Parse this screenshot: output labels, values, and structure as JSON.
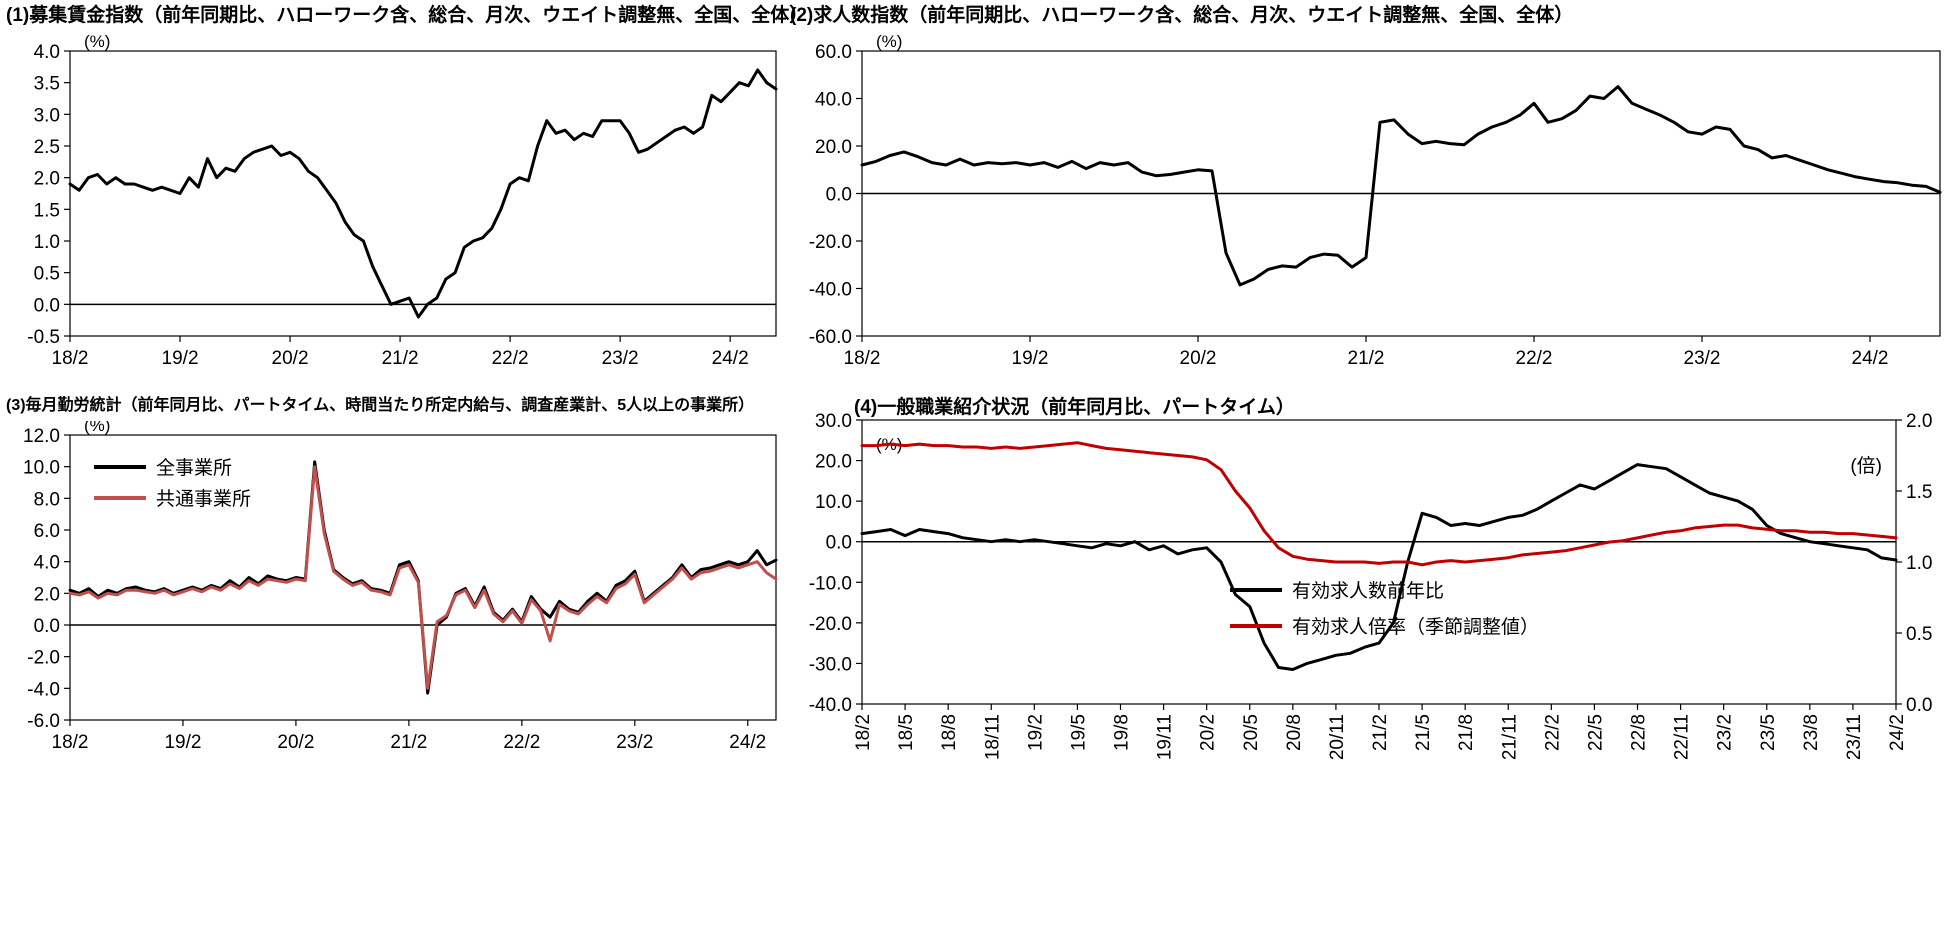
{
  "page": {
    "background": "#ffffff"
  },
  "chart_data": [
    {
      "id": "c1",
      "type": "line",
      "title": "(1)募集賃金指数（前年同期比、ハローワーク含、総合、月次、ウエイト調整無、全国、全体）",
      "unit_left": "(%)",
      "ylim": [
        -0.5,
        4.0
      ],
      "ytick": 0.5,
      "grid": false,
      "legend_visible": false,
      "x_labels": [
        "18/2",
        "19/2",
        "20/2",
        "21/2",
        "22/2",
        "23/2",
        "24/2"
      ],
      "x_step": 12,
      "series": [
        {
          "name": "",
          "color": "#000000",
          "axis": "left",
          "values": [
            1.9,
            1.8,
            2.0,
            2.05,
            1.9,
            2.0,
            1.9,
            1.9,
            1.85,
            1.8,
            1.85,
            1.8,
            1.75,
            2.0,
            1.85,
            2.3,
            2.0,
            2.15,
            2.1,
            2.3,
            2.4,
            2.45,
            2.5,
            2.35,
            2.4,
            2.3,
            2.1,
            2.0,
            1.8,
            1.6,
            1.3,
            1.1,
            1.0,
            0.6,
            0.3,
            0.0,
            0.05,
            0.1,
            -0.2,
            0.0,
            0.1,
            0.4,
            0.5,
            0.9,
            1.0,
            1.05,
            1.2,
            1.5,
            1.9,
            2.0,
            1.95,
            2.5,
            2.9,
            2.7,
            2.75,
            2.6,
            2.7,
            2.65,
            2.9,
            2.9,
            2.9,
            2.7,
            2.4,
            2.45,
            2.55,
            2.65,
            2.75,
            2.8,
            2.7,
            2.8,
            3.3,
            3.2,
            3.35,
            3.5,
            3.45,
            3.7,
            3.5,
            3.4
          ]
        }
      ]
    },
    {
      "id": "c2",
      "type": "line",
      "title": "(2)求人数指数（前年同期比、ハローワーク含、総合、月次、ウエイト調整無、全国、全体）",
      "unit_left": "(%)",
      "ylim": [
        -60.0,
        60.0
      ],
      "ytick": 20,
      "grid": false,
      "legend_visible": false,
      "x_labels": [
        "18/2",
        "19/2",
        "20/2",
        "21/2",
        "22/2",
        "23/2",
        "24/2"
      ],
      "x_step": 12,
      "series": [
        {
          "name": "",
          "color": "#000000",
          "axis": "left",
          "values": [
            12,
            13.5,
            16,
            17.5,
            15.5,
            13,
            12,
            14.5,
            12,
            13,
            12.5,
            13,
            12,
            13,
            11,
            13.5,
            10.5,
            13,
            12,
            13,
            9,
            7.5,
            8,
            9,
            10,
            9.5,
            -25,
            -38.5,
            -36,
            -32,
            -30.5,
            -31,
            -27,
            -25.5,
            -26,
            -31,
            -27,
            30,
            31,
            25,
            21,
            22,
            21,
            20.5,
            25,
            28,
            30,
            33,
            38,
            30,
            31.5,
            35,
            41,
            40,
            45,
            38,
            35.5,
            33,
            30,
            26,
            25,
            28,
            27,
            20,
            18.5,
            15,
            16,
            14,
            12,
            10,
            8.5,
            7,
            6,
            5,
            4.5,
            3.5,
            3,
            0.5
          ]
        }
      ]
    },
    {
      "id": "c3",
      "type": "line",
      "title": "(3)毎月勤労統計（前年同月比、パートタイム、時間当たり所定内給与、調査産業計、5人以上の事業所）",
      "unit_left": "(%)",
      "ylim": [
        -6.0,
        12.0
      ],
      "ytick": 2,
      "grid": false,
      "legend_visible": true,
      "x_labels": [
        "18/2",
        "19/2",
        "20/2",
        "21/2",
        "22/2",
        "23/2",
        "24/2"
      ],
      "x_step": 12,
      "series": [
        {
          "name": "全事業所",
          "color": "#000000",
          "axis": "left",
          "values": [
            2.2,
            2.0,
            2.3,
            1.8,
            2.2,
            2.0,
            2.3,
            2.4,
            2.2,
            2.1,
            2.3,
            2.0,
            2.2,
            2.4,
            2.2,
            2.5,
            2.3,
            2.8,
            2.4,
            3.0,
            2.6,
            3.1,
            2.9,
            2.8,
            3.0,
            2.9,
            10.3,
            6.0,
            3.5,
            3.0,
            2.6,
            2.8,
            2.3,
            2.2,
            2.0,
            3.8,
            4.0,
            2.8,
            -4.3,
            0.0,
            0.5,
            2.0,
            2.3,
            1.2,
            2.4,
            0.8,
            0.3,
            1.0,
            0.2,
            1.8,
            1.0,
            0.5,
            1.5,
            1.0,
            0.8,
            1.5,
            2.0,
            1.5,
            2.5,
            2.8,
            3.4,
            1.5,
            2.0,
            2.5,
            3.0,
            3.8,
            3.0,
            3.5,
            3.6,
            3.8,
            4.0,
            3.8,
            4.0,
            4.7,
            3.8,
            4.1
          ]
        },
        {
          "name": "共通事業所",
          "color": "#C0504D",
          "axis": "left",
          "values": [
            2.0,
            1.9,
            2.1,
            1.7,
            2.0,
            1.9,
            2.2,
            2.2,
            2.1,
            2.0,
            2.2,
            1.9,
            2.1,
            2.3,
            2.1,
            2.4,
            2.2,
            2.6,
            2.3,
            2.8,
            2.5,
            2.9,
            2.8,
            2.7,
            2.9,
            2.8,
            10.0,
            5.8,
            3.4,
            2.9,
            2.5,
            2.7,
            2.2,
            2.1,
            1.9,
            3.6,
            3.8,
            2.7,
            -4.0,
            0.2,
            0.6,
            1.9,
            2.2,
            1.1,
            2.2,
            0.7,
            0.2,
            0.9,
            0.1,
            1.6,
            0.9,
            -1.0,
            1.3,
            0.9,
            0.7,
            1.3,
            1.8,
            1.4,
            2.3,
            2.6,
            3.2,
            1.4,
            1.9,
            2.4,
            2.9,
            3.6,
            2.9,
            3.3,
            3.4,
            3.6,
            3.8,
            3.6,
            3.8,
            4.0,
            3.3,
            2.9
          ]
        }
      ]
    },
    {
      "id": "c4",
      "type": "line",
      "title": "(4)一般職業紹介状況（前年同月比、パートタイム）",
      "unit_left": "(%)",
      "unit_right": "(倍)",
      "ylim": [
        -40.0,
        30.0
      ],
      "ytick": 10,
      "ylim_right": [
        0.0,
        2.0
      ],
      "ytick_right": 0.5,
      "grid": false,
      "legend_visible": true,
      "x_labels": [
        "18/2",
        "18/5",
        "18/8",
        "18/11",
        "19/2",
        "19/5",
        "19/8",
        "19/11",
        "20/2",
        "20/5",
        "20/8",
        "20/11",
        "21/2",
        "21/5",
        "21/8",
        "21/11",
        "22/2",
        "22/5",
        "22/8",
        "22/11",
        "23/2",
        "23/5",
        "23/8",
        "23/11",
        "24/2"
      ],
      "x_step": 3,
      "series": [
        {
          "name": "有効求人数前年比",
          "color": "#000000",
          "axis": "left",
          "values": [
            2,
            2.5,
            3,
            1.5,
            3,
            2.5,
            2,
            1,
            0.5,
            0,
            0.5,
            0,
            0.5,
            0,
            -0.5,
            -1,
            -1.5,
            -0.5,
            -1,
            0,
            -2,
            -1,
            -3,
            -2,
            -1.5,
            -5,
            -13,
            -16,
            -25,
            -31,
            -31.5,
            -30,
            -29,
            -28,
            -27.5,
            -26,
            -25,
            -20,
            -5,
            7,
            6,
            4,
            4.5,
            4,
            5,
            6,
            6.5,
            8,
            10,
            12,
            14,
            13,
            15,
            17,
            19,
            18.5,
            18,
            16,
            14,
            12,
            11,
            10,
            8,
            4,
            2,
            1,
            0,
            -0.5,
            -1,
            -1.5,
            -2,
            -4,
            -4.5
          ]
        },
        {
          "name": "有効求人倍率（季節調整値）",
          "color": "#C00000",
          "axis": "right",
          "values": [
            1.82,
            1.82,
            1.83,
            1.82,
            1.83,
            1.82,
            1.82,
            1.81,
            1.81,
            1.8,
            1.81,
            1.8,
            1.81,
            1.82,
            1.83,
            1.84,
            1.82,
            1.8,
            1.79,
            1.78,
            1.77,
            1.76,
            1.75,
            1.74,
            1.72,
            1.65,
            1.5,
            1.38,
            1.22,
            1.1,
            1.04,
            1.02,
            1.01,
            1.0,
            1.0,
            1.0,
            0.99,
            1.0,
            1.0,
            0.98,
            1.0,
            1.01,
            1.0,
            1.01,
            1.02,
            1.03,
            1.05,
            1.06,
            1.07,
            1.08,
            1.1,
            1.12,
            1.14,
            1.15,
            1.17,
            1.19,
            1.21,
            1.22,
            1.24,
            1.25,
            1.26,
            1.26,
            1.24,
            1.23,
            1.22,
            1.22,
            1.21,
            1.21,
            1.2,
            1.2,
            1.19,
            1.18,
            1.17
          ]
        }
      ]
    }
  ]
}
